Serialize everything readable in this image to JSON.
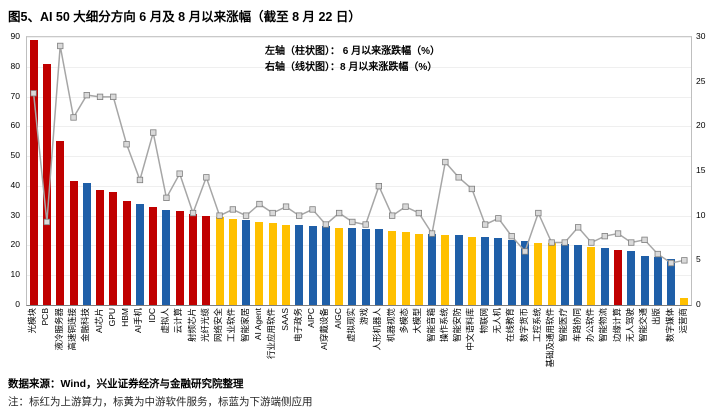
{
  "title": "图5、AI 50 大细分方向 6 月及 8 月以来涨幅（截至 8 月 22 日）",
  "legend": {
    "left": "左轴（柱状图）： 6 月以来涨跌幅（%）",
    "right": "右轴（线状图）：8 月以来涨跌幅（%）"
  },
  "footer": {
    "source": "数据来源：Wind，兴业证券经济与金融研究院整理",
    "note": "注：标红为上游算力，标黄为中游软件服务，标蓝为下游端侧应用"
  },
  "colors": {
    "red": "#C00000",
    "yellow": "#FFC000",
    "blue": "#1F5FA8",
    "line": "#A6A6A6",
    "marker_fill": "#D9D9D9",
    "marker_stroke": "#7F7F7F"
  },
  "chart_data": {
    "type": "bar+line",
    "title": "AI 50 大细分方向 6 月及 8 月以来涨幅（截至 8 月 22 日）",
    "left_axis": {
      "label": "6月以来涨跌幅（%）",
      "min": 0,
      "max": 90,
      "step": 10
    },
    "right_axis": {
      "label": "8月以来涨跌幅（%）",
      "min": 0,
      "max": 30,
      "step": 5
    },
    "categories": [
      "光模块",
      "PCB",
      "液冷服务器",
      "高速铜连接",
      "金融科技",
      "AI芯片",
      "GPU",
      "HBM",
      "AI手机",
      "IDC",
      "虚拟人",
      "云计算",
      "射频芯片",
      "光纤光缆",
      "网络安全",
      "工业软件",
      "智能家居",
      "AI Agent",
      "行业应用软件",
      "SAAS",
      "电子政务",
      "AIPC",
      "AI穿戴设备",
      "AIGC",
      "虚拟现实",
      "游戏",
      "人形机器人",
      "机器视觉",
      "多模态",
      "大模型",
      "智能音箱",
      "操作系统",
      "智能安防",
      "中文语料库",
      "物联网",
      "无人机",
      "在线教育",
      "数字货币",
      "工控系统",
      "基础及通用软件",
      "智能医疗",
      "车路协同",
      "办公软件",
      "智能物流",
      "边缘计算",
      "无人驾驶",
      "智能交通",
      "出版",
      "数字媒体",
      "运营商"
    ],
    "series": [
      {
        "name": "6月以来涨跌幅（%）",
        "type": "bar",
        "axis": "left",
        "values": [
          89,
          81,
          55,
          41.5,
          41,
          38.5,
          38,
          35,
          34,
          33,
          32,
          31.5,
          30.5,
          30,
          29.5,
          29,
          28.5,
          28,
          27.5,
          27,
          27,
          26.5,
          26.5,
          26,
          26,
          25.5,
          25.5,
          25,
          24.5,
          24,
          24,
          23.5,
          23.5,
          23,
          23,
          22.5,
          22,
          21.5,
          21,
          21,
          20.5,
          20,
          19.5,
          19,
          18.5,
          18,
          16.5,
          16,
          15.5,
          2.5
        ],
        "colors": [
          "red",
          "red",
          "red",
          "red",
          "blue",
          "red",
          "red",
          "red",
          "blue",
          "red",
          "blue",
          "red",
          "red",
          "red",
          "yellow",
          "yellow",
          "blue",
          "yellow",
          "yellow",
          "yellow",
          "blue",
          "blue",
          "blue",
          "yellow",
          "blue",
          "blue",
          "blue",
          "yellow",
          "yellow",
          "yellow",
          "blue",
          "yellow",
          "blue",
          "yellow",
          "blue",
          "blue",
          "blue",
          "blue",
          "yellow",
          "yellow",
          "blue",
          "blue",
          "yellow",
          "blue",
          "red",
          "blue",
          "blue",
          "blue",
          "blue",
          "yellow"
        ]
      },
      {
        "name": "8月以来涨跌幅（%）",
        "type": "line",
        "axis": "right",
        "values": [
          23.7,
          9.3,
          29,
          21,
          23.5,
          23.3,
          23.3,
          18,
          14,
          19.3,
          12,
          14.7,
          10.3,
          14.3,
          10,
          10.7,
          10,
          11.3,
          10.3,
          11,
          10,
          10.7,
          9,
          10.3,
          9.3,
          9,
          13.3,
          10,
          11,
          10.3,
          8,
          16,
          14.3,
          13,
          9,
          9.7,
          7.7,
          6,
          10.3,
          7,
          7,
          8.7,
          7,
          7.7,
          8,
          7,
          7.3,
          5.7,
          4.7,
          5
        ]
      }
    ],
    "legend_position": "top-center",
    "grid": "light-horizontal"
  }
}
